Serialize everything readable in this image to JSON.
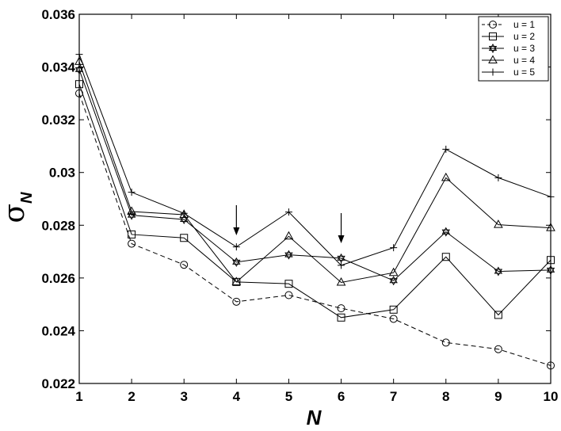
{
  "chart_data": {
    "type": "line",
    "title": "",
    "xlabel": "N",
    "ylabel": "σ",
    "ylabel_subscript": "N",
    "x": [
      1,
      2,
      3,
      4,
      5,
      6,
      7,
      8,
      9,
      10
    ],
    "xlim": [
      1,
      10
    ],
    "ylim": [
      0.022,
      0.036
    ],
    "xticks": [
      "1",
      "2",
      "3",
      "4",
      "5",
      "6",
      "7",
      "8",
      "9",
      "10"
    ],
    "yticks": [
      {
        "value": 0.022,
        "label": "0.022"
      },
      {
        "value": 0.024,
        "label": "0.024"
      },
      {
        "value": 0.026,
        "label": "0.026"
      },
      {
        "value": 0.028,
        "label": "0.028"
      },
      {
        "value": 0.03,
        "label": "0.03"
      },
      {
        "value": 0.032,
        "label": "0.032"
      },
      {
        "value": 0.034,
        "label": "0.034"
      },
      {
        "value": 0.036,
        "label": "0.036"
      }
    ],
    "grid": false,
    "legend_position": "top-right",
    "series": [
      {
        "name": "u = 1",
        "marker": "circle",
        "dash": true,
        "values": [
          0.033,
          0.0273,
          0.0265,
          0.0251,
          0.02535,
          0.02485,
          0.02445,
          0.02355,
          0.0233,
          0.02268
        ]
      },
      {
        "name": "u = 2",
        "marker": "square",
        "dash": false,
        "values": [
          0.03335,
          0.02765,
          0.02752,
          0.02585,
          0.02578,
          0.0245,
          0.0248,
          0.0268,
          0.0246,
          0.02668
        ]
      },
      {
        "name": "u = 3",
        "marker": "star",
        "dash": false,
        "values": [
          0.0339,
          0.02838,
          0.02822,
          0.0266,
          0.02688,
          0.02675,
          0.0259,
          0.02775,
          0.02625,
          0.0263
        ]
      },
      {
        "name": "u = 4",
        "marker": "triangle",
        "dash": false,
        "values": [
          0.0342,
          0.02852,
          0.0284,
          0.02585,
          0.02758,
          0.02583,
          0.0262,
          0.0298,
          0.02802,
          0.0279
        ]
      },
      {
        "name": "u = 5",
        "marker": "plus",
        "dash": false,
        "values": [
          0.03448,
          0.02925,
          0.02845,
          0.02718,
          0.0285,
          0.02648,
          0.02715,
          0.03088,
          0.0298,
          0.02908
        ]
      }
    ],
    "annotations": [
      {
        "type": "arrow-down",
        "x": 4,
        "note": "arrow above N=4"
      },
      {
        "type": "arrow-down",
        "x": 6,
        "note": "arrow above N=6"
      }
    ]
  }
}
